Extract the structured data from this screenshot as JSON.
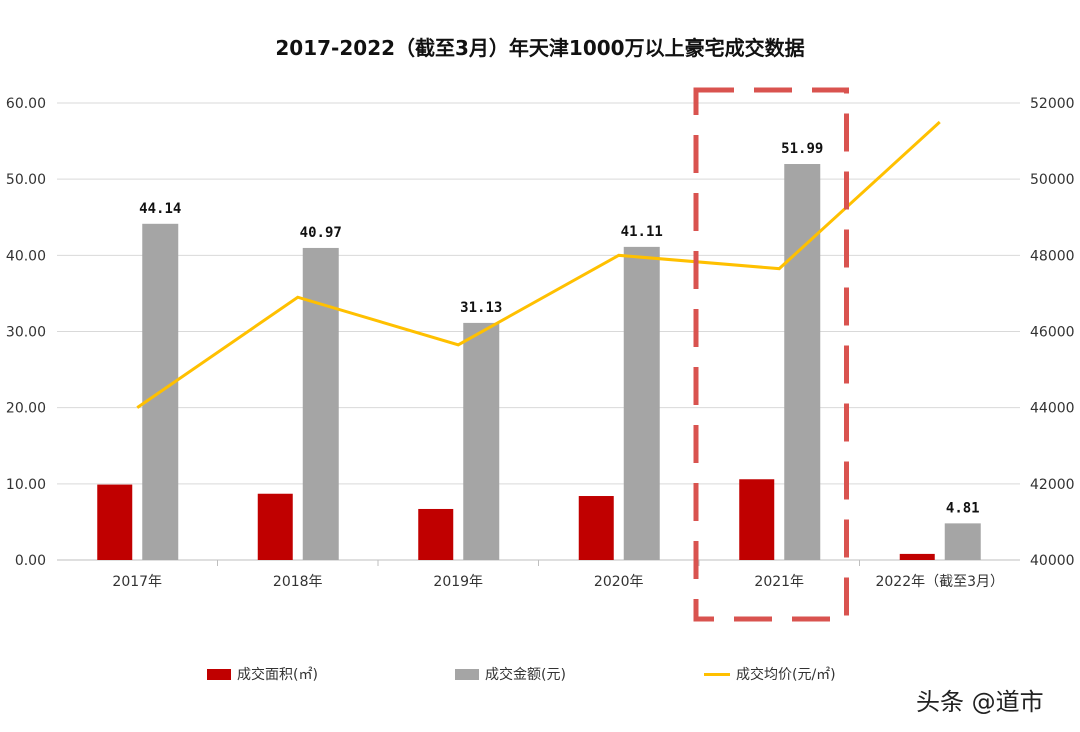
{
  "chart_data": {
    "type": "bar+line",
    "title": "2017-2022（截至3月）年天津1000万以上豪宅成交数据",
    "categories": [
      "2017年",
      "2018年",
      "2019年",
      "2020年",
      "2021年",
      "2022年（截至3月）"
    ],
    "y_left": {
      "ylim": [
        0,
        60
      ],
      "ticks": [
        "0.00",
        "10.00",
        "20.00",
        "30.00",
        "40.00",
        "50.00",
        "60.00"
      ]
    },
    "y_right": {
      "ylim": [
        40000,
        52000
      ],
      "ticks": [
        "40000",
        "42000",
        "44000",
        "46000",
        "48000",
        "50000",
        "52000"
      ]
    },
    "grid": true,
    "legend_position": "bottom",
    "series": [
      {
        "name": "成交面积(㎡)",
        "type": "bar",
        "axis": "left",
        "color": "#c00000",
        "values": [
          9.9,
          8.7,
          6.7,
          8.4,
          10.6,
          0.8
        ]
      },
      {
        "name": "成交金额(元)",
        "type": "bar",
        "axis": "left",
        "color": "#a5a5a5",
        "values": [
          44.14,
          40.97,
          31.13,
          41.11,
          51.99,
          4.81
        ],
        "labels": [
          "44.14",
          "40.97",
          "31.13",
          "41.11",
          "51.99",
          "4.81"
        ]
      },
      {
        "name": "成交均价(元/㎡)",
        "type": "line",
        "axis": "right",
        "color": "#ffc000",
        "values": [
          44000,
          46900,
          45650,
          48000,
          47650,
          51500
        ]
      }
    ],
    "highlight": {
      "category": "2021年",
      "style": "dashed-box",
      "color": "#d9534f"
    }
  },
  "watermark": "头条 @道市"
}
